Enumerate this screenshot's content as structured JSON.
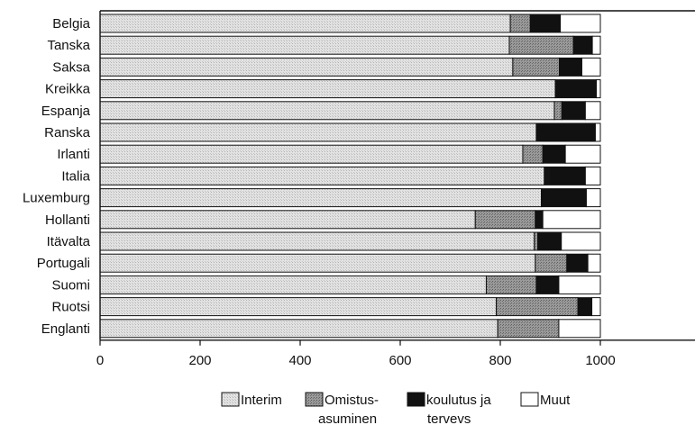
{
  "chart_data": {
    "type": "bar",
    "orientation": "horizontal",
    "stacked": true,
    "categories": [
      "Belgia",
      "Tanska",
      "Saksa",
      "Kreikka",
      "Espanja",
      "Ranska",
      "Irlanti",
      "Italia",
      "Luxemburg",
      "Hollanti",
      "Itävalta",
      "Portugali",
      "Suomi",
      "Ruotsi",
      "Englanti"
    ],
    "series": [
      {
        "name": "Interim",
        "values": [
          820,
          818,
          825,
          910,
          908,
          872,
          845,
          888,
          882,
          750,
          868,
          870,
          772,
          792,
          795
        ]
      },
      {
        "name": "Omistus-\nasuminen",
        "values": [
          40,
          128,
          93,
          0,
          15,
          0,
          40,
          0,
          0,
          120,
          7,
          63,
          100,
          163,
          122
        ]
      },
      {
        "name": "koulutus ja\ntervevs",
        "values": [
          60,
          38,
          45,
          82,
          47,
          118,
          45,
          82,
          90,
          15,
          47,
          42,
          45,
          28,
          0
        ]
      },
      {
        "name": "Muut",
        "values": [
          80,
          16,
          37,
          8,
          30,
          10,
          70,
          30,
          28,
          115,
          78,
          25,
          83,
          17,
          83
        ]
      }
    ],
    "xlim": [
      0,
      1000
    ],
    "xticks": [
      0,
      200,
      400,
      600,
      800,
      1000
    ],
    "title": "",
    "xlabel": "",
    "ylabel": "",
    "legend_position": "bottom",
    "grid": false
  },
  "style": {
    "colors": {
      "Interim": "#dedede",
      "Omistus": "#8e8e8e",
      "koulutus": "#111111",
      "Muut": "#ffffff",
      "axis": "#111111"
    }
  }
}
